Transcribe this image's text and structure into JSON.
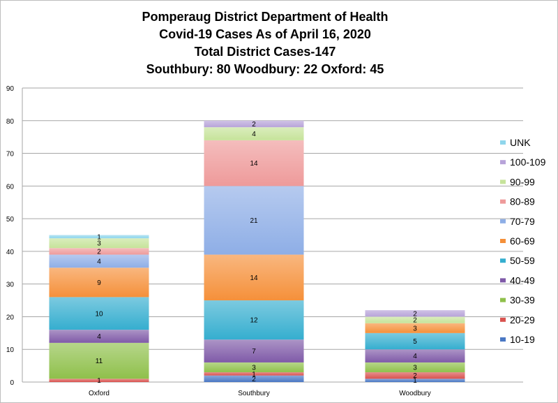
{
  "chart_data": {
    "type": "bar",
    "stacked": true,
    "title_lines": [
      "Pomperaug District Department of Health",
      "Covid-19 Cases As of April 16, 2020",
      "Total District Cases-147",
      "Southbury: 80 Woodbury: 22 Oxford: 45"
    ],
    "categories": [
      "Oxford",
      "Southbury",
      "Woodbury"
    ],
    "ylim": [
      0,
      90
    ],
    "yticks": [
      0,
      10,
      20,
      30,
      40,
      50,
      60,
      70,
      80,
      90
    ],
    "grid": true,
    "legend_position": "right",
    "series": [
      {
        "name": "10-19",
        "color": "#4a78c4",
        "values": [
          0,
          2,
          1
        ]
      },
      {
        "name": "20-29",
        "color": "#d9534f",
        "values": [
          1,
          1,
          2
        ]
      },
      {
        "name": "30-39",
        "color": "#8fc04b",
        "values": [
          11,
          3,
          3
        ]
      },
      {
        "name": "40-49",
        "color": "#7f5aa8",
        "values": [
          4,
          7,
          4
        ]
      },
      {
        "name": "50-59",
        "color": "#35aecf",
        "values": [
          10,
          12,
          5
        ]
      },
      {
        "name": "60-69",
        "color": "#f5903a",
        "values": [
          9,
          14,
          3
        ]
      },
      {
        "name": "70-79",
        "color": "#8eaee6",
        "values": [
          4,
          21,
          0
        ]
      },
      {
        "name": "80-89",
        "color": "#ee9a9a",
        "values": [
          2,
          14,
          0
        ]
      },
      {
        "name": "90-99",
        "color": "#c6e39a",
        "values": [
          3,
          4,
          2
        ]
      },
      {
        "name": "100-109",
        "color": "#b7a3d9",
        "values": [
          0,
          2,
          2
        ]
      },
      {
        "name": "UNK",
        "color": "#8fd6ec",
        "values": [
          1,
          0,
          0
        ]
      }
    ]
  }
}
